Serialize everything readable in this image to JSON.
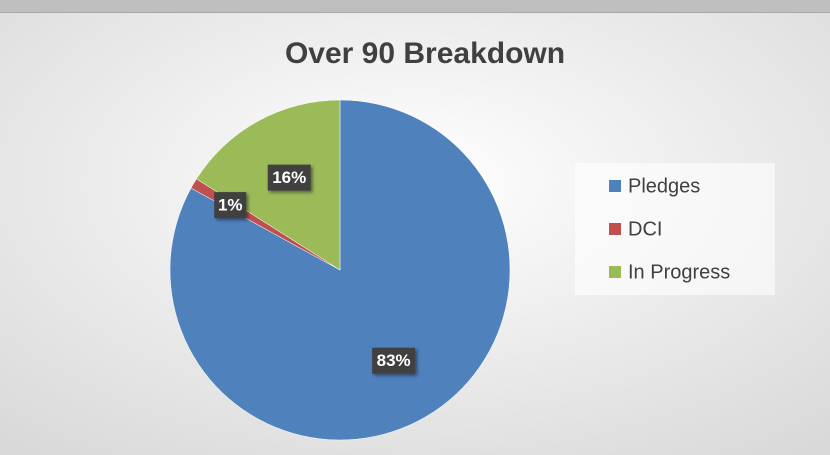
{
  "chart_data": {
    "type": "pie",
    "title": "Over 90 Breakdown",
    "categories": [
      "Pledges",
      "DCI",
      "In Progress"
    ],
    "values": [
      83,
      1,
      16
    ],
    "value_labels": [
      "83%",
      "1%",
      "16%"
    ],
    "colors": [
      "#4f81bd",
      "#c0504d",
      "#9bbb59"
    ],
    "legend": "right"
  }
}
